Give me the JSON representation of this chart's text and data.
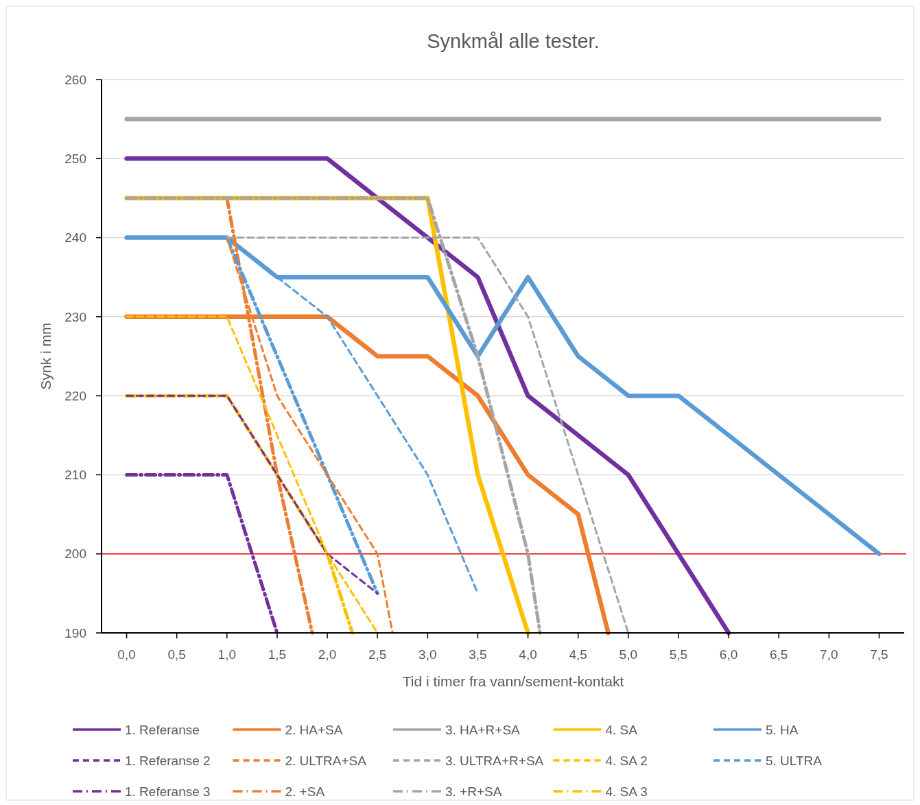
{
  "chart_data": {
    "type": "line",
    "title": "Synkmål alle tester.",
    "xlabel": "Tid i timer fra vann/sement-kontakt",
    "ylabel": "Synk i mm",
    "xlim": [
      -0.25,
      7.75
    ],
    "xticks": [
      {
        "value": 0,
        "label": "0,0"
      },
      {
        "value": 0.5,
        "label": "0,5"
      },
      {
        "value": 1,
        "label": "1,0"
      },
      {
        "value": 1.5,
        "label": "1,5"
      },
      {
        "value": 2,
        "label": "2,0"
      },
      {
        "value": 2.5,
        "label": "2,5"
      },
      {
        "value": 3,
        "label": "3,0"
      },
      {
        "value": 3.5,
        "label": "3,5"
      },
      {
        "value": 4,
        "label": "4,0"
      },
      {
        "value": 4.5,
        "label": "4,5"
      },
      {
        "value": 5,
        "label": "5,0"
      },
      {
        "value": 5.5,
        "label": "5,5"
      },
      {
        "value": 6,
        "label": "6,0"
      },
      {
        "value": 6.5,
        "label": "6,5"
      },
      {
        "value": 7,
        "label": "7,0"
      },
      {
        "value": 7.5,
        "label": "7,5"
      }
    ],
    "ylim": [
      190,
      260
    ],
    "yticks": [
      190,
      200,
      210,
      220,
      230,
      240,
      250,
      260
    ],
    "grid": "y",
    "legend": "bottom",
    "ref_lines": [
      {
        "axis": "y",
        "value": 200,
        "color": "#ff0000"
      }
    ],
    "series": [
      {
        "name": "1. Referanse",
        "color": "#7030a0",
        "line_style": "solid",
        "x": [
          0,
          0.5,
          1,
          1.5,
          2,
          2.5,
          3,
          3.5,
          4,
          4.5,
          5,
          5.5,
          6
        ],
        "values": [
          250,
          250,
          250,
          250,
          250,
          245,
          240,
          235,
          220,
          215,
          210,
          200,
          190
        ]
      },
      {
        "name": "2. HA+SA",
        "color": "#ed7d31",
        "line_style": "solid",
        "x": [
          0,
          0.5,
          1,
          1.5,
          2,
          2.5,
          3,
          3.5,
          4,
          4.5,
          4.8
        ],
        "values": [
          230,
          230,
          230,
          230,
          230,
          225,
          225,
          220,
          210,
          205,
          190
        ]
      },
      {
        "name": "3. HA+R+SA",
        "color": "#a5a5a5",
        "line_style": "solid",
        "x": [
          0,
          0.5,
          1,
          1.5,
          2,
          2.5,
          3,
          3.5,
          4,
          4.5,
          5,
          5.5,
          6,
          6.5,
          7,
          7.5
        ],
        "values": [
          255,
          255,
          255,
          255,
          255,
          255,
          255,
          255,
          255,
          255,
          255,
          255,
          255,
          255,
          255,
          255
        ]
      },
      {
        "name": "4. SA",
        "color": "#ffc000",
        "line_style": "solid",
        "x": [
          0,
          0.5,
          1,
          1.5,
          2,
          2.5,
          3,
          3.5,
          4
        ],
        "values": [
          245,
          245,
          245,
          245,
          245,
          245,
          245,
          210,
          190
        ]
      },
      {
        "name": "5. HA",
        "color": "#5b9bd5",
        "line_style": "solid",
        "x": [
          0,
          0.5,
          1,
          1.5,
          2,
          2.5,
          3,
          3.5,
          4,
          4.5,
          5,
          5.5,
          6,
          6.5,
          7,
          7.5
        ],
        "values": [
          240,
          240,
          240,
          235,
          235,
          235,
          235,
          225,
          235,
          225,
          220,
          220,
          215,
          210,
          205,
          200
        ]
      },
      {
        "name": "1. Referanse 2",
        "color": "#7030a0",
        "line_style": "dashed",
        "x": [
          0,
          0.5,
          1,
          1.5,
          2,
          2.5
        ],
        "values": [
          220,
          220,
          220,
          210,
          200,
          195
        ]
      },
      {
        "name": "2. ULTRA+SA",
        "color": "#ed7d31",
        "line_style": "dashed",
        "x": [
          1,
          1.5,
          2,
          2.5,
          2.65
        ],
        "values": [
          240,
          220,
          210,
          200,
          190
        ]
      },
      {
        "name": "3. ULTRA+R+SA",
        "color": "#a5a5a5",
        "line_style": "dashed",
        "x": [
          1,
          1.5,
          2,
          2.5,
          3,
          3.5,
          4,
          4.5,
          5
        ],
        "values": [
          240,
          240,
          240,
          240,
          240,
          240,
          230,
          210,
          190
        ]
      },
      {
        "name": "4. SA 2",
        "color": "#ffc000",
        "line_style": "dashed",
        "x": [
          0,
          0.5,
          1,
          1.5,
          2,
          2.5
        ],
        "values": [
          230,
          230,
          230,
          215,
          200,
          190
        ]
      },
      {
        "name": "5. ULTRA",
        "color": "#5b9bd5",
        "line_style": "dashed",
        "x": [
          1.5,
          2,
          2.5,
          3,
          3.5
        ],
        "values": [
          235,
          230,
          220,
          210,
          195
        ]
      },
      {
        "name": "1. Referanse 3",
        "color": "#7030a0",
        "line_style": "dashdot",
        "x": [
          0,
          0.5,
          1,
          1.5
        ],
        "values": [
          210,
          210,
          210,
          190
        ]
      },
      {
        "name": "2. +SA",
        "color": "#ed7d31",
        "line_style": "dashdot",
        "x": [
          1,
          1.5,
          1.85
        ],
        "values": [
          245,
          210,
          190
        ]
      },
      {
        "name": "3. +R+SA",
        "color": "#a5a5a5",
        "line_style": "dashdot",
        "x": [
          0,
          0.5,
          1,
          1.5,
          2,
          2.5,
          3,
          3.5,
          4,
          4.12
        ],
        "values": [
          245,
          245,
          245,
          245,
          245,
          245,
          245,
          225,
          200,
          190
        ]
      },
      {
        "name": "4. SA 3",
        "color": "#ffc000",
        "line_style": "dashdot",
        "x": [
          0,
          0.5,
          1,
          1.5,
          2,
          2.25
        ],
        "values": [
          220,
          220,
          220,
          210,
          200,
          190
        ]
      },
      {
        "color": "#5b9bd5",
        "line_style": "dashdot",
        "x": [
          1,
          1.5,
          2,
          2.5
        ],
        "values": [
          240,
          225,
          210,
          195
        ]
      }
    ]
  }
}
